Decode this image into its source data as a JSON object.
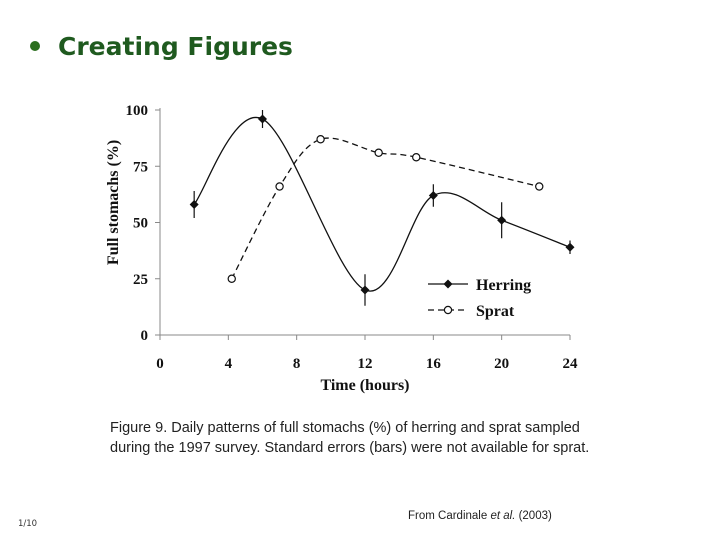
{
  "slide": {
    "title": "Creating Figures",
    "page_number": "1/10",
    "caption": "Figure 9. Daily patterns of full stomachs (%) of herring and sprat sampled during the 1997 survey. Standard errors (bars) were not available for sprat.",
    "source_prefix": "From Cardinale ",
    "source_italic": "et al.",
    "source_suffix": " (2003)",
    "accent_color": "#1f5a1f"
  },
  "chart_data": {
    "type": "line",
    "xlabel": "Time (hours)",
    "ylabel": "Full stomachs (%)",
    "xlim": [
      0,
      24
    ],
    "ylim": [
      0,
      100
    ],
    "x_ticks": [
      "0",
      "4",
      "8",
      "12",
      "16",
      "20",
      "24"
    ],
    "y_ticks": [
      "0",
      "25",
      "50",
      "75",
      "100"
    ],
    "grid": false,
    "legend_position": "lower-right",
    "series": [
      {
        "name": "Herring",
        "style": "solid",
        "marker": "filled-diamond",
        "x": [
          2,
          6,
          12,
          16,
          20,
          24
        ],
        "y": [
          58,
          96,
          20,
          62,
          51,
          39
        ],
        "err": [
          6,
          4,
          7,
          5,
          8,
          3
        ]
      },
      {
        "name": "Sprat",
        "style": "dashed",
        "marker": "open-circle",
        "x": [
          4.2,
          7,
          9.4,
          12.8,
          15,
          22.2
        ],
        "y": [
          25,
          66,
          87,
          81,
          79,
          66
        ]
      }
    ]
  }
}
